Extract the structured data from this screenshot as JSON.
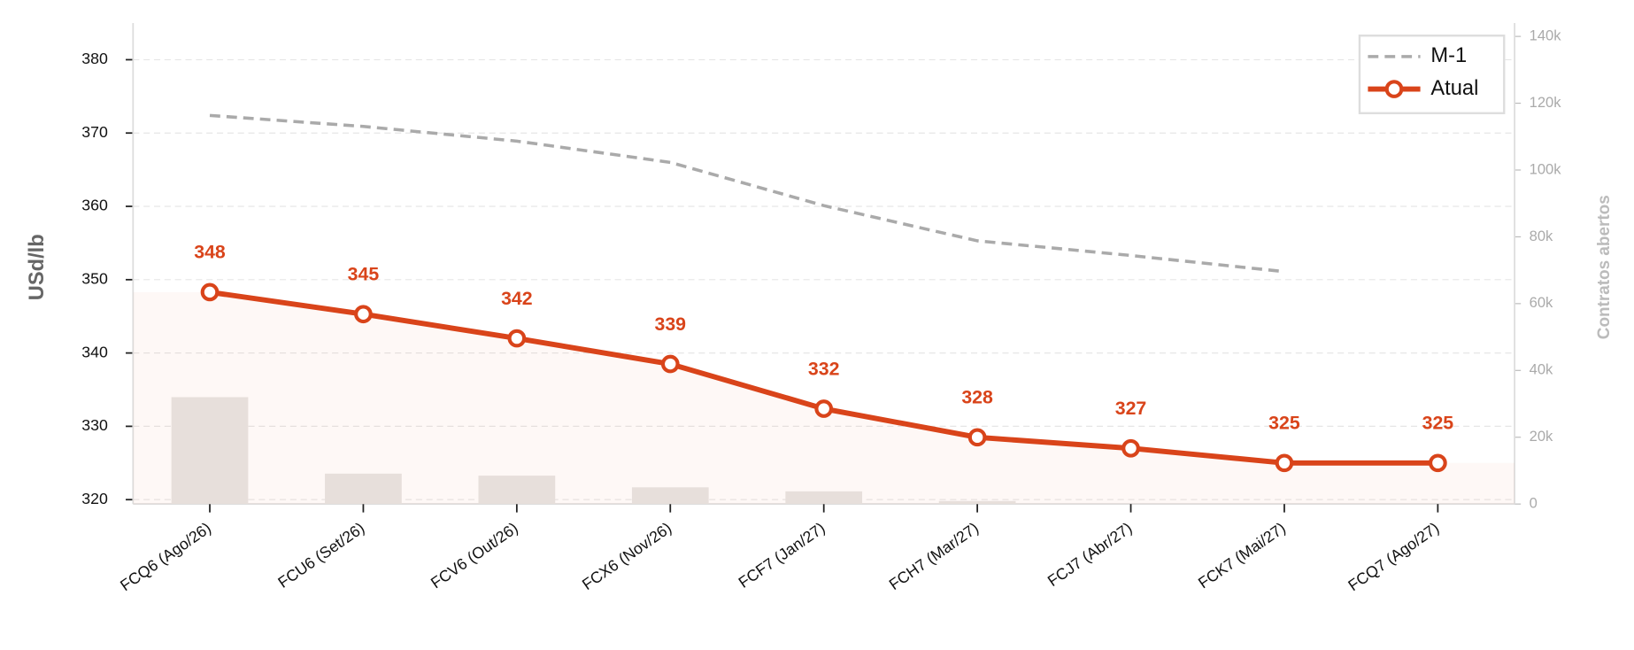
{
  "chart_data": {
    "type": "line",
    "y_label": "USd/lb",
    "y2_label": "Contratos abertos",
    "categories": [
      "FCQ6 (Ago/26)",
      "FCU6 (Set/26)",
      "FCV6 (Out/26)",
      "FCX6 (Nov/26)",
      "FCF7 (Jan/27)",
      "FCH7 (Mar/27)",
      "FCJ7 (Abr/27)",
      "FCK7 (Mai/27)",
      "FCQ7 (Ago/27)"
    ],
    "series": [
      {
        "axis": "y2",
        "color": "#e8e5e3",
        "values": [
          32000,
          9100,
          8500,
          5000,
          3800,
          900,
          0,
          0,
          0
        ]
      },
      {
        "name": "M-1",
        "color": "#aaaaaa",
        "dashed": true,
        "values": [
          372.4,
          370.9,
          368.9,
          366.0,
          360.1,
          355.3,
          353.3,
          351.1,
          null
        ]
      },
      {
        "name": "Atual",
        "color": "#d9441a",
        "values": [
          348.3,
          345.3,
          342.0,
          338.5,
          332.4,
          328.5,
          327.0,
          325.0,
          325.0
        ],
        "value_labels": [
          "348",
          "345",
          "342",
          "339",
          "332",
          "328",
          "327",
          "325",
          "325"
        ]
      }
    ],
    "ylim": [
      319.4,
      385
    ],
    "yticks": [
      320,
      330,
      340,
      350,
      360,
      370,
      380
    ],
    "y2lim": [
      0,
      144000
    ],
    "y2ticks": [
      0,
      {
        "value": 20000,
        "label": "20k"
      },
      {
        "value": 40000,
        "label": "40k"
      },
      {
        "value": 60000,
        "label": "60k"
      },
      {
        "value": 80000,
        "label": "80k"
      },
      {
        "value": 100000,
        "label": "100k"
      },
      {
        "value": 120000,
        "label": "120k"
      },
      {
        "value": 140000,
        "label": "140k"
      }
    ],
    "grid": true,
    "legend": "upper right"
  }
}
